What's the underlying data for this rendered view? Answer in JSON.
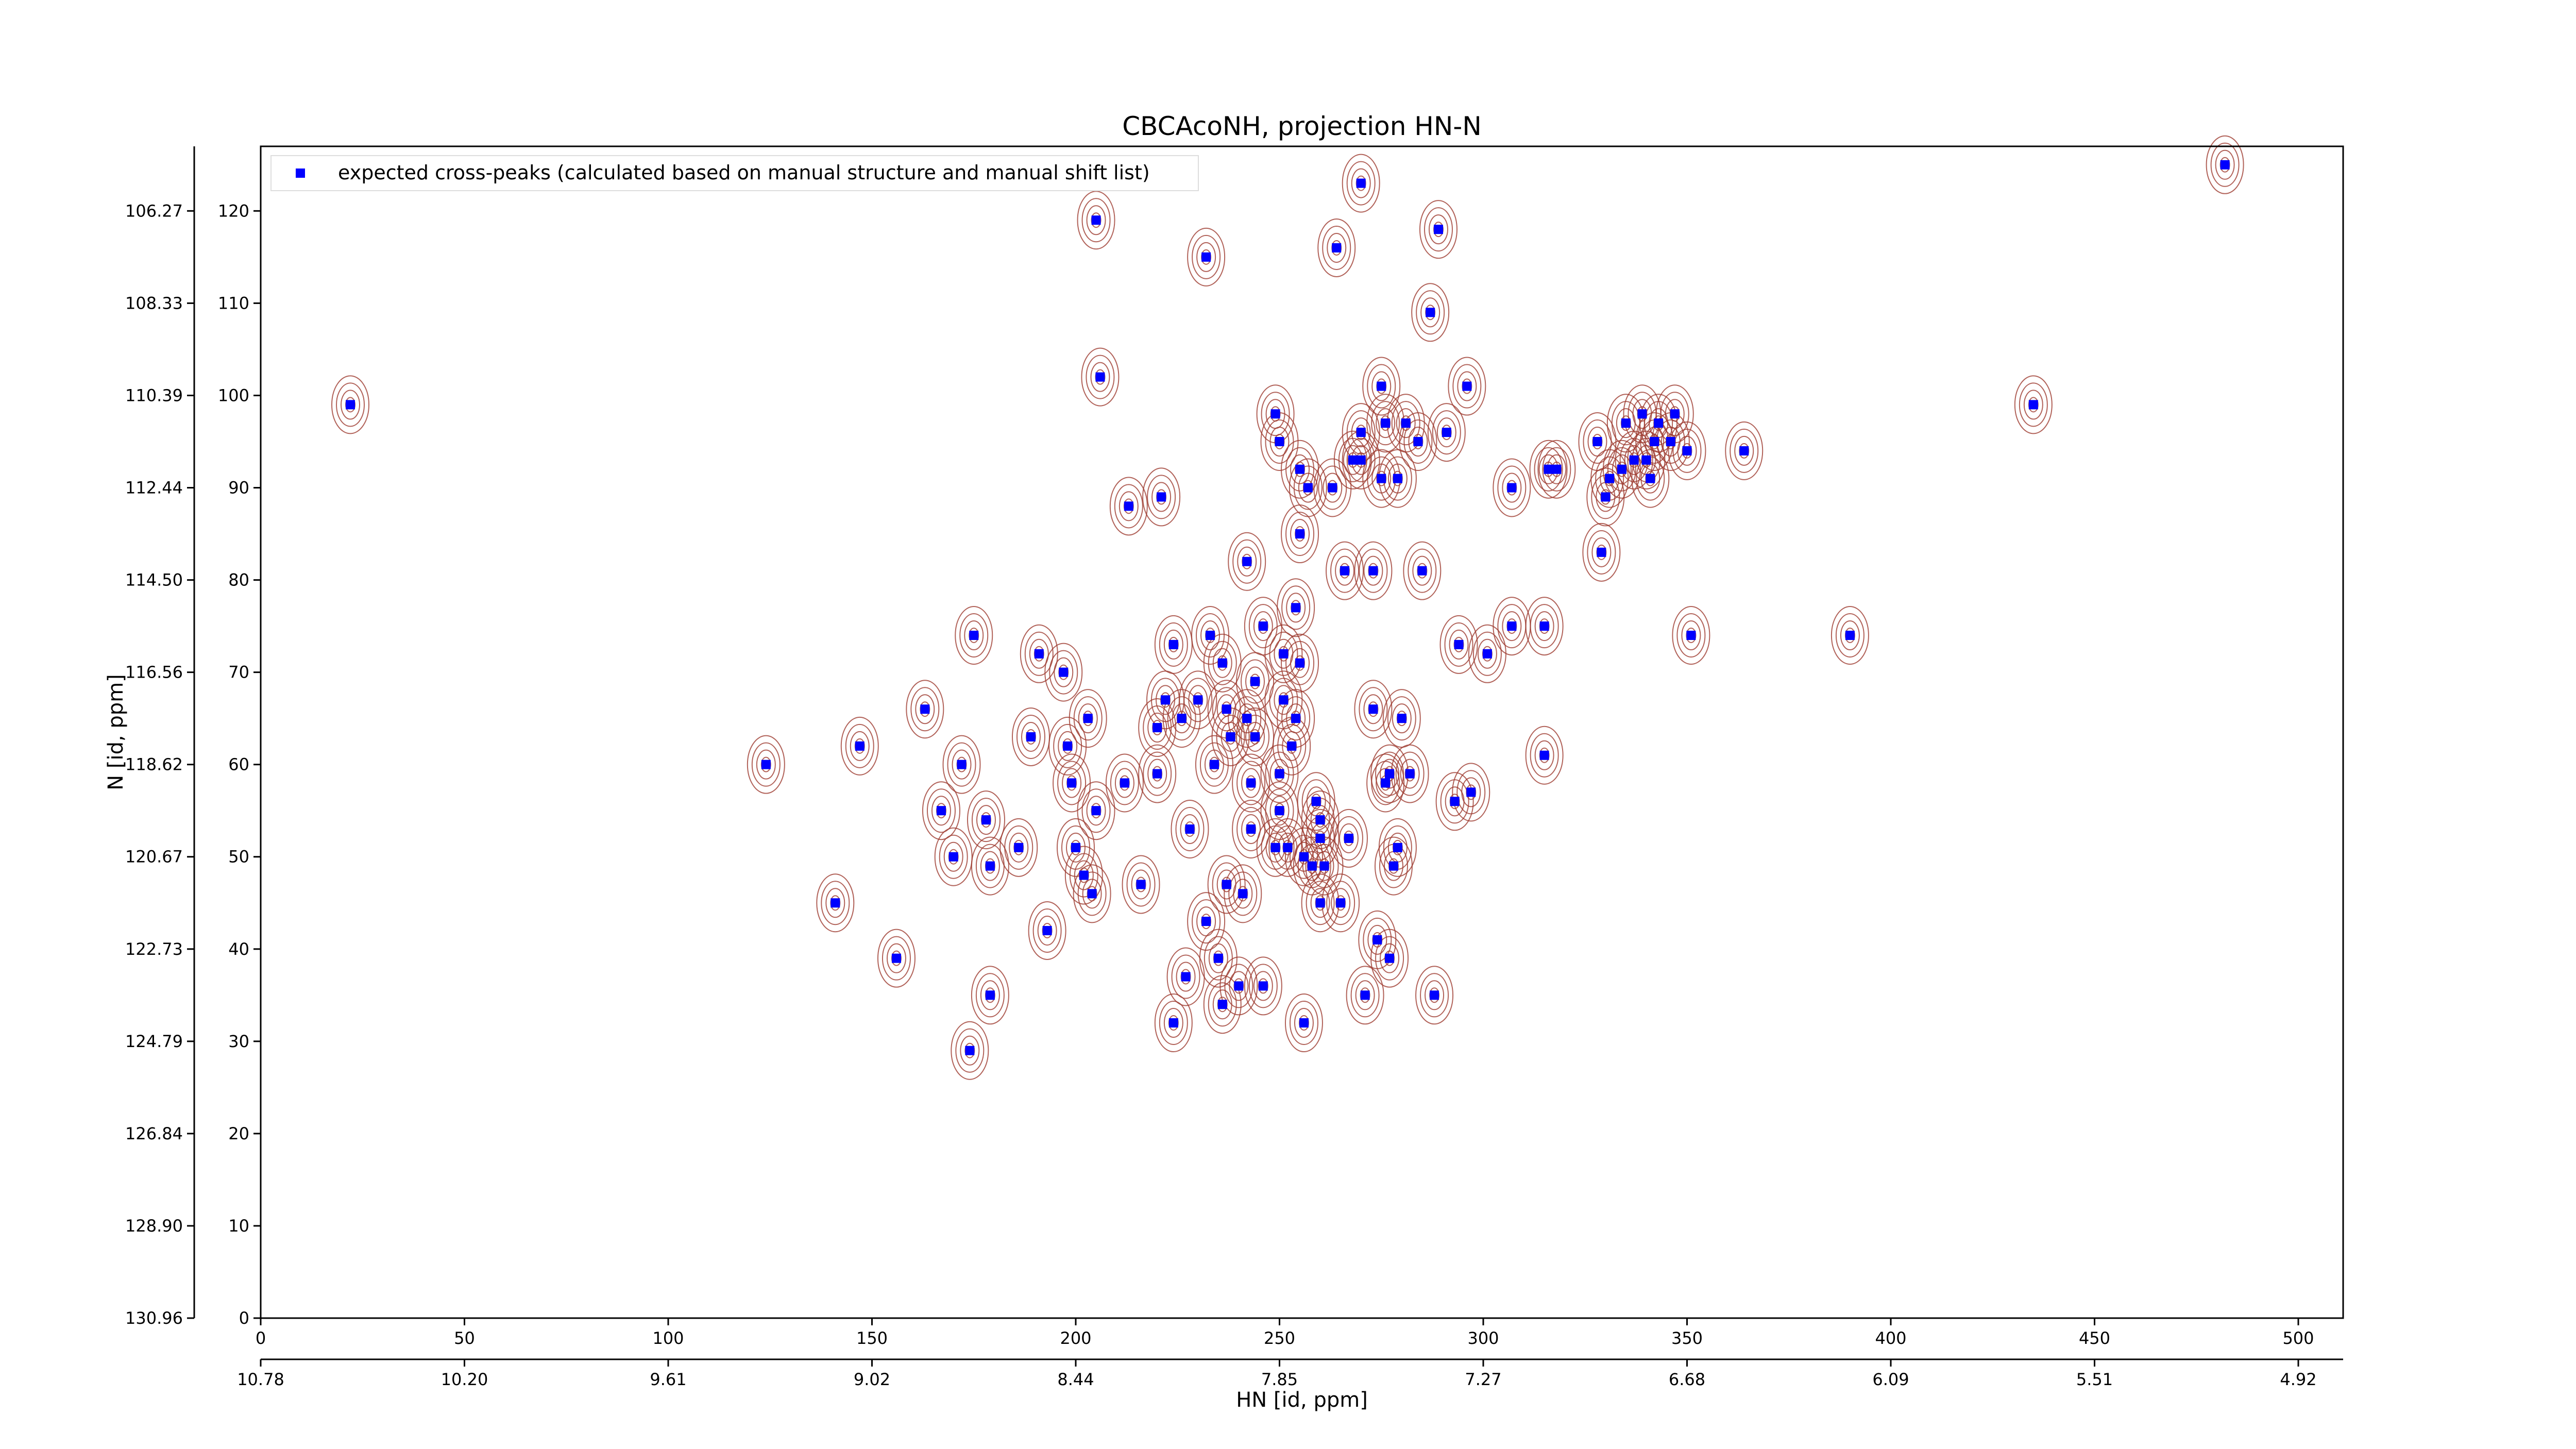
{
  "chart_data": {
    "type": "scatter",
    "title": "CBCAcoNH, projection HN-N",
    "xlabel": "HN [id, ppm]",
    "ylabel": "N [id, ppm]",
    "xlim": [
      0,
      511
    ],
    "ylim": [
      0,
      127
    ],
    "xticks": [
      0,
      50,
      100,
      150,
      200,
      250,
      300,
      350,
      400,
      450,
      500
    ],
    "yticks": [
      0,
      10,
      20,
      30,
      40,
      50,
      60,
      70,
      80,
      90,
      100,
      110,
      120
    ],
    "x2ticks": [
      {
        "value": 0,
        "label": "10.78"
      },
      {
        "value": 50,
        "label": "10.20"
      },
      {
        "value": 100,
        "label": "9.61"
      },
      {
        "value": 150,
        "label": "9.02"
      },
      {
        "value": 200,
        "label": "8.44"
      },
      {
        "value": 250,
        "label": "7.85"
      },
      {
        "value": 300,
        "label": "7.27"
      },
      {
        "value": 350,
        "label": "6.68"
      },
      {
        "value": 400,
        "label": "6.09"
      },
      {
        "value": 450,
        "label": "5.51"
      },
      {
        "value": 500,
        "label": "4.92"
      }
    ],
    "y2ticks": [
      {
        "value": 0,
        "label": "130.96"
      },
      {
        "value": 10,
        "label": "128.90"
      },
      {
        "value": 20,
        "label": "126.84"
      },
      {
        "value": 30,
        "label": "124.79"
      },
      {
        "value": 40,
        "label": "122.73"
      },
      {
        "value": 50,
        "label": "120.67"
      },
      {
        "value": 60,
        "label": "118.62"
      },
      {
        "value": 70,
        "label": "116.56"
      },
      {
        "value": 80,
        "label": "114.50"
      },
      {
        "value": 90,
        "label": "112.44"
      },
      {
        "value": 100,
        "label": "110.39"
      },
      {
        "value": 110,
        "label": "108.33"
      },
      {
        "value": 120,
        "label": "106.27"
      }
    ],
    "legend": "upper left",
    "contour_color": "#9e3b30",
    "series": [
      {
        "name": "expected cross-peaks (calculated based on manual structure and manual shift list)",
        "color": "#0000ff",
        "x": [
          22,
          124,
          147,
          141,
          156,
          163,
          167,
          170,
          172,
          175,
          174,
          179,
          178,
          179,
          186,
          189,
          191,
          193,
          197,
          198,
          199,
          200,
          202,
          203,
          204,
          205,
          205,
          206,
          213,
          212,
          216,
          220,
          221,
          220,
          222,
          224,
          224,
          227,
          228,
          226,
          230,
          232,
          232,
          233,
          234,
          235,
          236,
          236,
          237,
          237,
          238,
          240,
          241,
          242,
          242,
          243,
          243,
          244,
          244,
          246,
          249,
          246,
          249,
          250,
          250,
          251,
          250,
          251,
          252,
          253,
          254,
          254,
          255,
          255,
          255,
          256,
          257,
          256,
          258,
          259,
          260,
          260,
          260,
          261,
          263,
          264,
          265,
          266,
          267,
          268,
          270,
          270,
          270,
          271,
          273,
          273,
          275,
          274,
          275,
          276,
          276,
          277,
          277,
          278,
          279,
          279,
          280,
          281,
          282,
          284,
          285,
          287,
          288,
          289,
          291,
          293,
          294,
          296,
          297,
          301,
          307,
          307,
          315,
          316,
          315,
          318,
          328,
          329,
          330,
          331,
          334,
          335,
          337,
          339,
          340,
          341,
          342,
          343,
          346,
          347,
          350,
          351,
          364,
          390,
          435,
          482
        ],
        "y": [
          99,
          60,
          62,
          45,
          39,
          66,
          55,
          50,
          60,
          74,
          29,
          35,
          54,
          49,
          51,
          63,
          72,
          42,
          70,
          62,
          58,
          51,
          48,
          65,
          46,
          55,
          119,
          102,
          88,
          58,
          47,
          64,
          89,
          59,
          67,
          73,
          32,
          37,
          53,
          65,
          67,
          115,
          43,
          74,
          60,
          39,
          34,
          71,
          66,
          47,
          63,
          36,
          46,
          65,
          82,
          58,
          53,
          69,
          63,
          36,
          98,
          75,
          51,
          59,
          55,
          72,
          95,
          67,
          51,
          62,
          65,
          77,
          92,
          71,
          85,
          50,
          90,
          32,
          49,
          56,
          45,
          54,
          52,
          49,
          90,
          116,
          45,
          81,
          52,
          93,
          123,
          96,
          93,
          35,
          81,
          66,
          91,
          41,
          101,
          97,
          58,
          59,
          39,
          49,
          51,
          91,
          65,
          97,
          59,
          95,
          81,
          109,
          35,
          118,
          96,
          56,
          73,
          101,
          57,
          72,
          90,
          75,
          75,
          92,
          61,
          92,
          95,
          83,
          89,
          91,
          92,
          97,
          93,
          98,
          93,
          91,
          95,
          97,
          95,
          98,
          94,
          74,
          94,
          74,
          99,
          125
        ]
      }
    ]
  }
}
